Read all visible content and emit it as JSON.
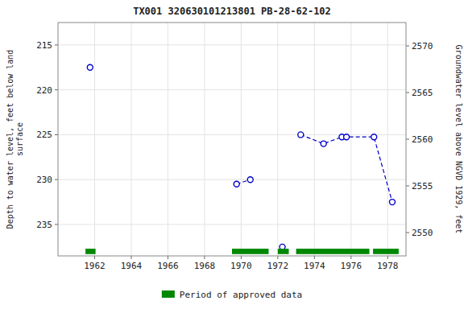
{
  "chart_data": {
    "type": "line",
    "title": "TX001 320630101213801 PB-28-62-102",
    "ylabel": "Depth to water level, feet below land\nsurface",
    "y2label": "Groundwater level above NGVD 1929, feet",
    "xlim": [
      1960,
      1979
    ],
    "xticks": [
      1962,
      1964,
      1966,
      1968,
      1970,
      1972,
      1974,
      1976,
      1978
    ],
    "ylim": [
      238.5,
      212.5
    ],
    "yticks": [
      215,
      220,
      225,
      230,
      235
    ],
    "y2lim": [
      2547.5,
      2572.5
    ],
    "y2ticks": [
      2550,
      2555,
      2560,
      2565,
      2570
    ],
    "grid": true,
    "legend": "bottom",
    "series": [
      {
        "type": "line",
        "color": "#0000cc",
        "marker": "circle",
        "line_style": "dashed",
        "x": [
          1961.75
        ],
        "values": [
          217.5
        ]
      },
      {
        "type": "line",
        "color": "#0000cc",
        "marker": "circle",
        "line_style": "dashed",
        "x": [
          1969.75,
          1970.5
        ],
        "values": [
          230.5,
          230.0
        ]
      },
      {
        "type": "line",
        "color": "#0000cc",
        "marker": "circle",
        "line_style": "dashed",
        "x": [
          1972.25
        ],
        "values": [
          237.5
        ]
      },
      {
        "type": "line",
        "color": "#0000cc",
        "marker": "circle",
        "line_style": "dashed",
        "x": [
          1973.25,
          1974.5,
          1975.5,
          1975.75,
          1977.25,
          1978.25
        ],
        "values": [
          225.0,
          226.0,
          225.25,
          225.25,
          225.25,
          232.5
        ]
      },
      {
        "type": "range",
        "name": "Period of approved data",
        "color": "#008800",
        "y": 238.0,
        "height": 0.6,
        "ranges": [
          [
            1961.5,
            1962.05
          ],
          [
            1969.5,
            1971.5
          ],
          [
            1972.0,
            1972.6
          ],
          [
            1973.0,
            1977.0
          ],
          [
            1977.2,
            1978.6
          ]
        ]
      }
    ]
  }
}
